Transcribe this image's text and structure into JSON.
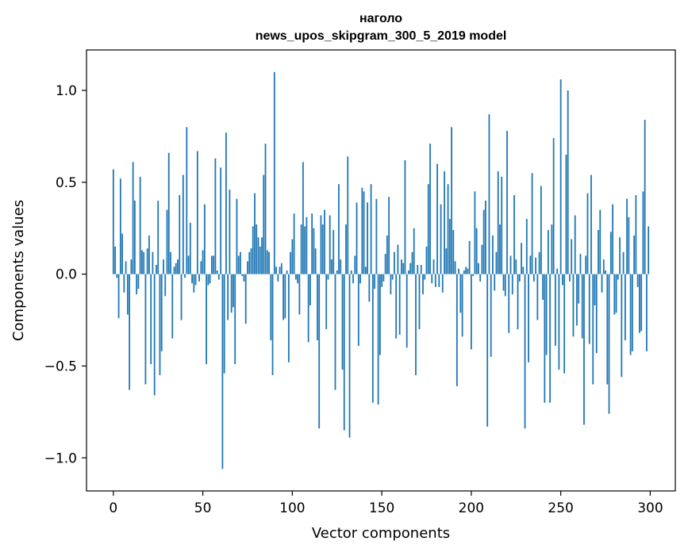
{
  "chart_data": {
    "type": "bar",
    "title": "наголо",
    "subtitle": "news_upos_skipgram_300_5_2019 model",
    "xlabel": "Vector components",
    "ylabel": "Components values",
    "xlim": [
      -15,
      314
    ],
    "ylim": [
      -1.18,
      1.22
    ],
    "xticks": [
      0,
      50,
      100,
      150,
      200,
      250,
      300
    ],
    "yticks": [
      -1.0,
      -0.5,
      0.0,
      0.5,
      1.0
    ],
    "ytick_labels": [
      "−1.0",
      "−0.5",
      "0.0",
      "0.5",
      "1.0"
    ],
    "grid": false,
    "bar_color": "#1f77b4",
    "values": [
      0.57,
      0.15,
      -0.02,
      -0.24,
      0.52,
      0.22,
      -0.1,
      0.07,
      -0.22,
      -0.63,
      0.08,
      0.61,
      0.4,
      -0.11,
      -0.08,
      0.53,
      0.13,
      0.12,
      -0.6,
      0.14,
      0.21,
      -0.49,
      0.12,
      -0.66,
      0.05,
      0.4,
      -0.55,
      -0.42,
      0.08,
      -0.12,
      0.35,
      0.66,
      0.12,
      -0.35,
      0.04,
      0.06,
      0.08,
      0.43,
      -0.25,
      0.54,
      -0.02,
      0.8,
      0.1,
      0.28,
      -0.05,
      -0.1,
      -0.06,
      0.67,
      -0.04,
      0.07,
      0.13,
      0.38,
      -0.49,
      -0.06,
      -0.05,
      0.1,
      0.1,
      0.63,
      0.02,
      -0.03,
      0.58,
      -1.06,
      -0.54,
      0.77,
      -0.25,
      0.46,
      -0.21,
      -0.18,
      -0.49,
      0.41,
      0.1,
      0.12,
      -0.01,
      -0.04,
      -0.27,
      0.07,
      0.12,
      0.14,
      0.26,
      0.44,
      0.27,
      0.2,
      0.15,
      0.2,
      0.54,
      0.71,
      0.13,
      0.12,
      -0.36,
      -0.55,
      1.1,
      0.04,
      -0.04,
      0.04,
      0.06,
      -0.25,
      -0.24,
      0.02,
      -0.48,
      0.12,
      0.19,
      0.33,
      -0.03,
      -0.05,
      -0.22,
      0.27,
      0.61,
      0.26,
      0.31,
      -0.37,
      -0.17,
      0.33,
      0.25,
      0.14,
      -0.36,
      -0.84,
      0.32,
      0.27,
      0.35,
      -0.3,
      -0.03,
      0.32,
      0.08,
      0.24,
      -0.63,
      0.02,
      0.49,
      0.08,
      -0.52,
      -0.85,
      0.27,
      0.64,
      -0.89,
      0.02,
      -0.05,
      0.1,
      0.39,
      -0.39,
      -0.05,
      0.47,
      0.45,
      0.04,
      0.39,
      -0.15,
      0.49,
      -0.7,
      -0.08,
      0.41,
      -0.71,
      -0.44,
      -0.07,
      -0.04,
      0.11,
      0.21,
      0.42,
      -0.11,
      -0.03,
      0.12,
      -0.35,
      0.16,
      -0.33,
      0.08,
      0.06,
      0.62,
      -0.4,
      0.02,
      0.06,
      0.12,
      0.25,
      -0.55,
      0.05,
      -0.3,
      0.05,
      -0.11,
      -0.03,
      0.15,
      0.49,
      0.71,
      -0.05,
      0.08,
      -0.07,
      0.6,
      -0.07,
      0.38,
      -0.1,
      0.56,
      0.14,
      0.49,
      0.3,
      0.8,
      0.24,
      0.07,
      -0.61,
      0.03,
      -0.21,
      -0.34,
      0.02,
      0.04,
      0.03,
      0.18,
      -0.41,
      -0.01,
      0.45,
      0.25,
      0.06,
      -0.04,
      0.16,
      0.35,
      0.4,
      -0.83,
      0.87,
      -0.45,
      0.21,
      -0.09,
      0.12,
      0.56,
      0.27,
      0.53,
      -0.09,
      -0.12,
      0.78,
      -0.32,
      0.1,
      -0.11,
      0.43,
      0.08,
      -0.3,
      -0.04,
      0.17,
      0.04,
      -0.84,
      0.3,
      -0.48,
      0.1,
      0.55,
      -0.04,
      0.09,
      -0.25,
      0.12,
      0.48,
      -0.14,
      -0.7,
      -0.44,
      0.24,
      -0.7,
      0.27,
      0.74,
      -0.39,
      0.03,
      -0.52,
      1.06,
      -0.06,
      -0.54,
      0.65,
      1.0,
      -0.04,
      0.19,
      -0.34,
      0.32,
      -0.28,
      -0.16,
      0.11,
      -0.35,
      -0.82,
      0.1,
      0.44,
      -0.38,
      0.54,
      -0.6,
      -0.17,
      -0.43,
      0.24,
      0.35,
      -0.1,
      0.08,
      0.02,
      -0.6,
      -0.76,
      0.23,
      0.38,
      -0.22,
      -0.21,
      -0.03,
      0.2,
      -0.56,
      0.12,
      -0.36,
      0.41,
      0.31,
      -0.44,
      -0.42,
      0.21,
      0.43,
      -0.07,
      -0.32,
      -0.31,
      0.45,
      0.84,
      -0.42,
      0.26
    ]
  }
}
